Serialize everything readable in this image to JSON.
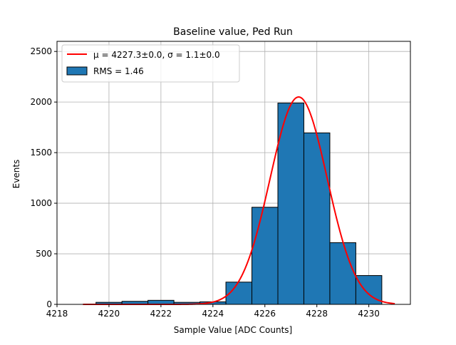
{
  "chart_data": {
    "type": "bar",
    "title": "Baseline value, Ped Run",
    "xlabel": "Sample Value [ADC Counts]",
    "ylabel": "Events",
    "xlim": [
      4218.0,
      4231.6
    ],
    "ylim": [
      0,
      2600
    ],
    "x_ticks": [
      4218,
      4220,
      4222,
      4224,
      4226,
      4228,
      4230
    ],
    "y_ticks": [
      0,
      500,
      1000,
      1500,
      2000,
      2500
    ],
    "grid": true,
    "legend_position": "top-left",
    "bins": [
      {
        "left": 4219.5,
        "right": 4220.5,
        "count": 20
      },
      {
        "left": 4220.5,
        "right": 4221.5,
        "count": 30
      },
      {
        "left": 4221.5,
        "right": 4222.5,
        "count": 40
      },
      {
        "left": 4222.5,
        "right": 4223.5,
        "count": 20
      },
      {
        "left": 4223.5,
        "right": 4224.5,
        "count": 25
      },
      {
        "left": 4224.5,
        "right": 4225.5,
        "count": 220
      },
      {
        "left": 4225.5,
        "right": 4226.5,
        "count": 960
      },
      {
        "left": 4226.5,
        "right": 4227.5,
        "count": 1990
      },
      {
        "left": 4227.5,
        "right": 4228.5,
        "count": 1695
      },
      {
        "left": 4228.5,
        "right": 4229.5,
        "count": 610
      },
      {
        "left": 4229.5,
        "right": 4230.5,
        "count": 285
      }
    ],
    "series": [
      {
        "name": "RMS = 1.46",
        "kind": "histogram",
        "color": "#1f77b4",
        "edgecolor": "#000000"
      },
      {
        "name": "μ = 4227.3±0.0, σ = 1.1±0.0",
        "kind": "gaussian-fit",
        "color": "#ff0000",
        "mu": 4227.3,
        "sigma": 1.1,
        "amplitude": 2050,
        "x_range": [
          4219.0,
          4231.0
        ]
      }
    ]
  }
}
